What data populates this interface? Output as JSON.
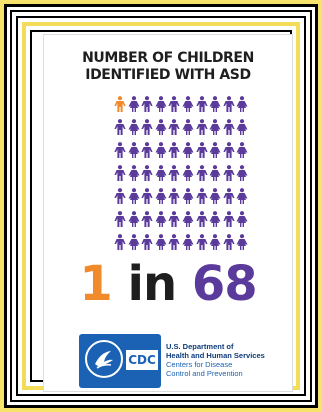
{
  "poster": {
    "title_line1": "NUMBER OF CHILDREN",
    "title_line2": "IDENTIFIED WITH ASD",
    "icon_rows": 7,
    "icon_cols": 10,
    "highlighted_count": 1,
    "icon_color_highlight": "#f08a2a",
    "icon_color_default": "#5a3a9a",
    "ratio_number": "1",
    "ratio_word": "in",
    "ratio_total": "68"
  },
  "footer": {
    "cdc_logo_text": "CDC",
    "hhs_line1": "U.S. Department of",
    "hhs_line2": "Health and Human Services",
    "cdc_line1": "Centers for Disease",
    "cdc_line2": "Control and Prevention"
  }
}
